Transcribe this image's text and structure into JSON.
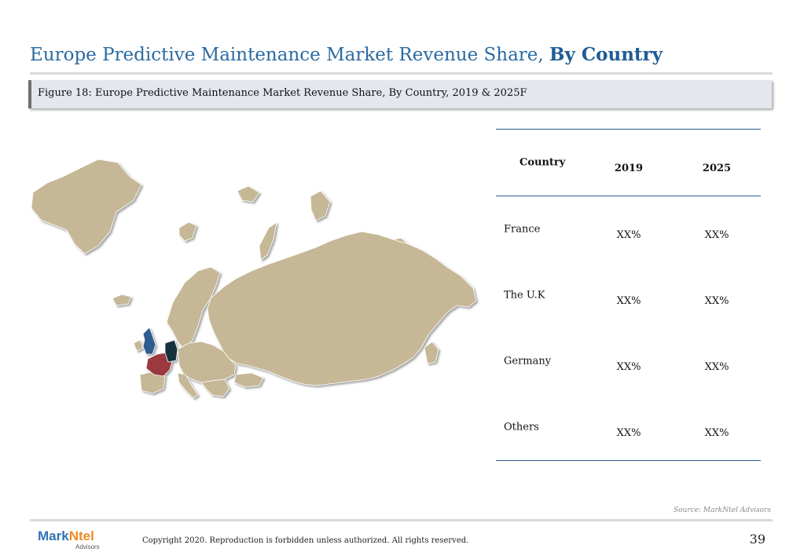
{
  "title": {
    "main": "Europe Predictive Maintenance Market Revenue Share, ",
    "bold": "By Country"
  },
  "figure_caption": "Figure 18: Europe Predictive Maintenance Market Revenue Share, By Country, 2019 & 2025F",
  "table": {
    "headers": [
      "Country",
      "2019",
      "2025"
    ],
    "rows": [
      {
        "country": "France",
        "v2019": "XX%",
        "v2025": "XX%"
      },
      {
        "country": "The U.K",
        "v2019": "XX%",
        "v2025": "XX%"
      },
      {
        "country": "Germany",
        "v2019": "XX%",
        "v2025": "XX%"
      },
      {
        "country": "Others",
        "v2019": "XX%",
        "v2025": "XX%"
      }
    ]
  },
  "map_colors": {
    "land": "#c6b896",
    "france": "#9b3840",
    "uk": "#2f5c8e",
    "germany": "#12333d"
  },
  "source": "Source: MarkNtel Advisors",
  "footer": {
    "logo_main": "Mark",
    "logo_accent": "Ntel",
    "logo_sub": "Advisors",
    "copyright": "Copyright 2020. Reproduction is forbidden unless authorized. All rights reserved.",
    "page_number": "39"
  }
}
